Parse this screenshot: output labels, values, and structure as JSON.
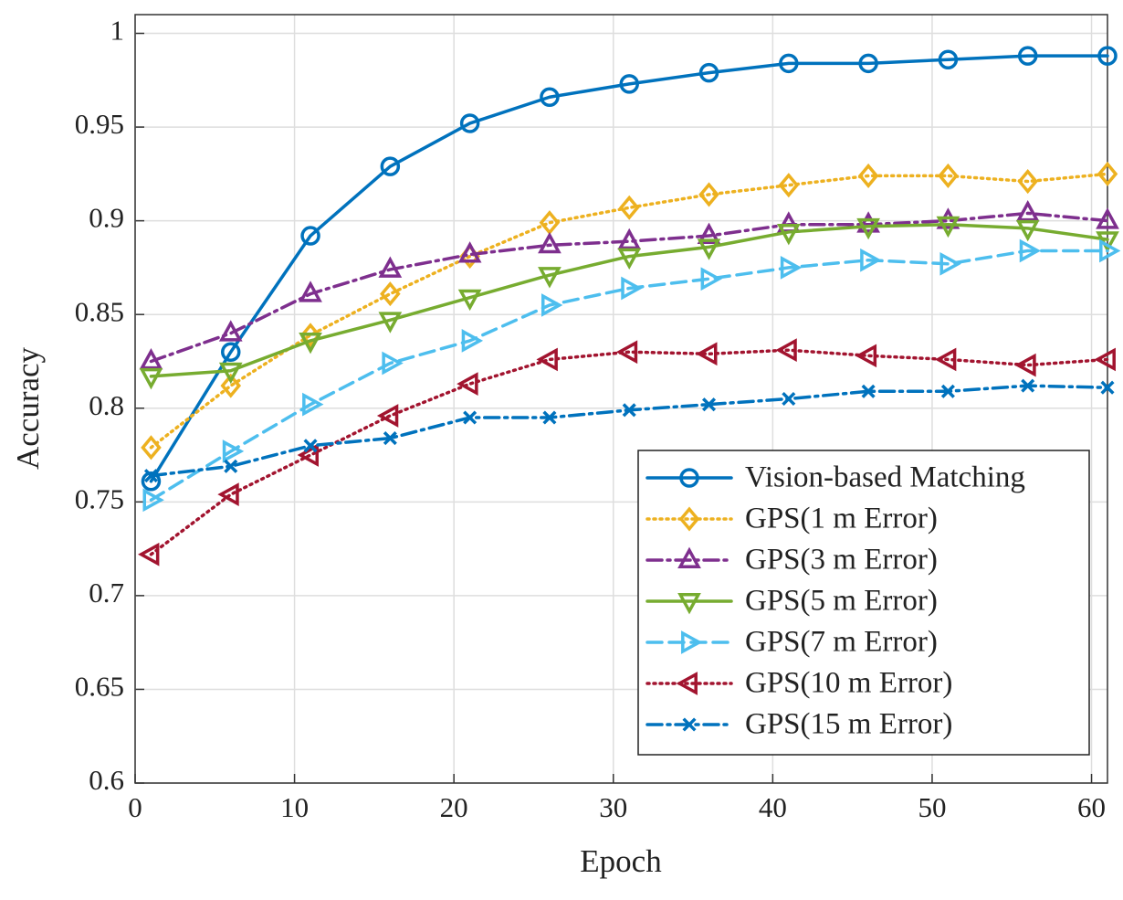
{
  "chart_data": {
    "type": "line",
    "xlabel": "Epoch",
    "ylabel": "Accuracy",
    "x": [
      1,
      6,
      11,
      16,
      21,
      26,
      31,
      36,
      41,
      46,
      51,
      56,
      61
    ],
    "xlim": [
      0,
      61
    ],
    "xticks": [
      0,
      10,
      20,
      30,
      40,
      50,
      60
    ],
    "ylim": [
      0.6,
      1.01
    ],
    "yticks": [
      0.6,
      0.65,
      0.7,
      0.75,
      0.8,
      0.85,
      0.9,
      0.95,
      1
    ],
    "grid": true,
    "legend_loc": "lower right",
    "series": [
      {
        "name": "Vision-based Matching",
        "color": "#0072bd",
        "dash": "solid",
        "marker": "circle",
        "values": [
          0.761,
          0.83,
          0.892,
          0.929,
          0.952,
          0.966,
          0.973,
          0.979,
          0.984,
          0.984,
          0.986,
          0.988,
          0.988
        ]
      },
      {
        "name": "GPS(1 m Error)",
        "color": "#edb120",
        "dash": "dotted",
        "marker": "diamond",
        "values": [
          0.779,
          0.812,
          0.839,
          0.861,
          0.881,
          0.899,
          0.907,
          0.914,
          0.919,
          0.924,
          0.924,
          0.921,
          0.925
        ]
      },
      {
        "name": "GPS(3 m Error)",
        "color": "#7e2f8e",
        "dash": "dashdot",
        "marker": "triangle-up",
        "values": [
          0.825,
          0.84,
          0.861,
          0.874,
          0.882,
          0.887,
          0.889,
          0.892,
          0.898,
          0.898,
          0.9,
          0.904,
          0.9
        ]
      },
      {
        "name": "GPS(5 m Error)",
        "color": "#77ac30",
        "dash": "solid",
        "marker": "triangle-down",
        "values": [
          0.817,
          0.82,
          0.836,
          0.847,
          0.859,
          0.871,
          0.881,
          0.886,
          0.894,
          0.897,
          0.898,
          0.896,
          0.89
        ]
      },
      {
        "name": "GPS(7 m Error)",
        "color": "#4dbeee",
        "dash": "dashed",
        "marker": "triangle-right",
        "values": [
          0.751,
          0.777,
          0.802,
          0.824,
          0.836,
          0.855,
          0.864,
          0.869,
          0.875,
          0.879,
          0.877,
          0.884,
          0.884
        ]
      },
      {
        "name": "GPS(10 m Error)",
        "color": "#a2142f",
        "dash": "dotted",
        "marker": "triangle-left",
        "values": [
          0.722,
          0.754,
          0.775,
          0.796,
          0.813,
          0.826,
          0.83,
          0.829,
          0.831,
          0.828,
          0.826,
          0.823,
          0.826
        ]
      },
      {
        "name": "GPS(15 m Error)",
        "color": "#0072bd",
        "dash": "dashdot",
        "marker": "x",
        "values": [
          0.764,
          0.769,
          0.78,
          0.784,
          0.795,
          0.795,
          0.799,
          0.802,
          0.805,
          0.809,
          0.809,
          0.812,
          0.811
        ]
      }
    ]
  }
}
